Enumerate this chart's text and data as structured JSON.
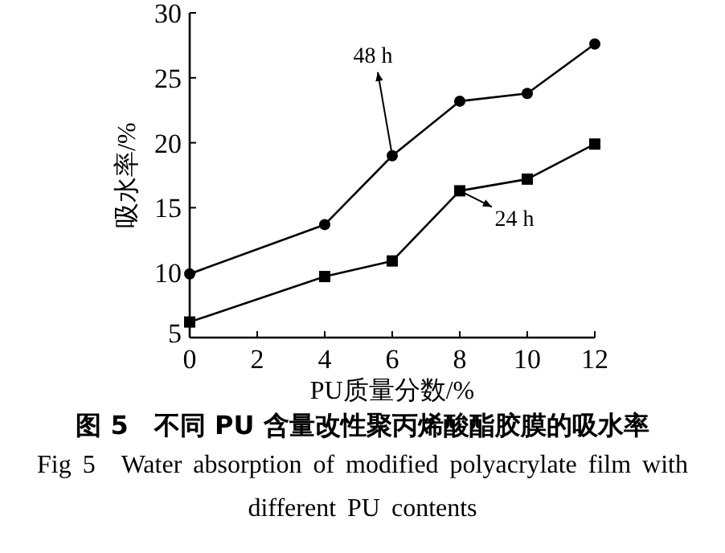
{
  "chart_data": {
    "type": "line",
    "title": "图 5　不同 PU 含量改性聚丙烯酸酯胶膜的吸水率",
    "subtitle": "Fig 5　Water absorption of modified polyacrylate film with different PU contents",
    "xlabel": "PU质量分数/%",
    "ylabel": "吸水率/%",
    "x": [
      0,
      4,
      6,
      8,
      10,
      12
    ],
    "series": [
      {
        "color": "#000000",
        "marker": "circle",
        "values": [
          9.9,
          13.7,
          19.0,
          23.2,
          23.8,
          27.6
        ]
      },
      {
        "color": "#000000",
        "marker": "square",
        "values": [
          6.2,
          9.7,
          10.9,
          16.3,
          17.2,
          19.9
        ]
      }
    ],
    "xlim": [
      0,
      12
    ],
    "xticks": [
      0,
      2,
      4,
      6,
      8,
      10,
      12
    ],
    "ylim": [
      5,
      30
    ],
    "yticks": [
      5,
      10,
      15,
      20,
      25,
      30
    ],
    "annotations": [
      {
        "text": "48 h",
        "x": 6,
        "y": 19.0
      },
      {
        "text": "24 h",
        "x": 8,
        "y": 16.3
      }
    ],
    "grid": false,
    "line_style": "solid"
  }
}
